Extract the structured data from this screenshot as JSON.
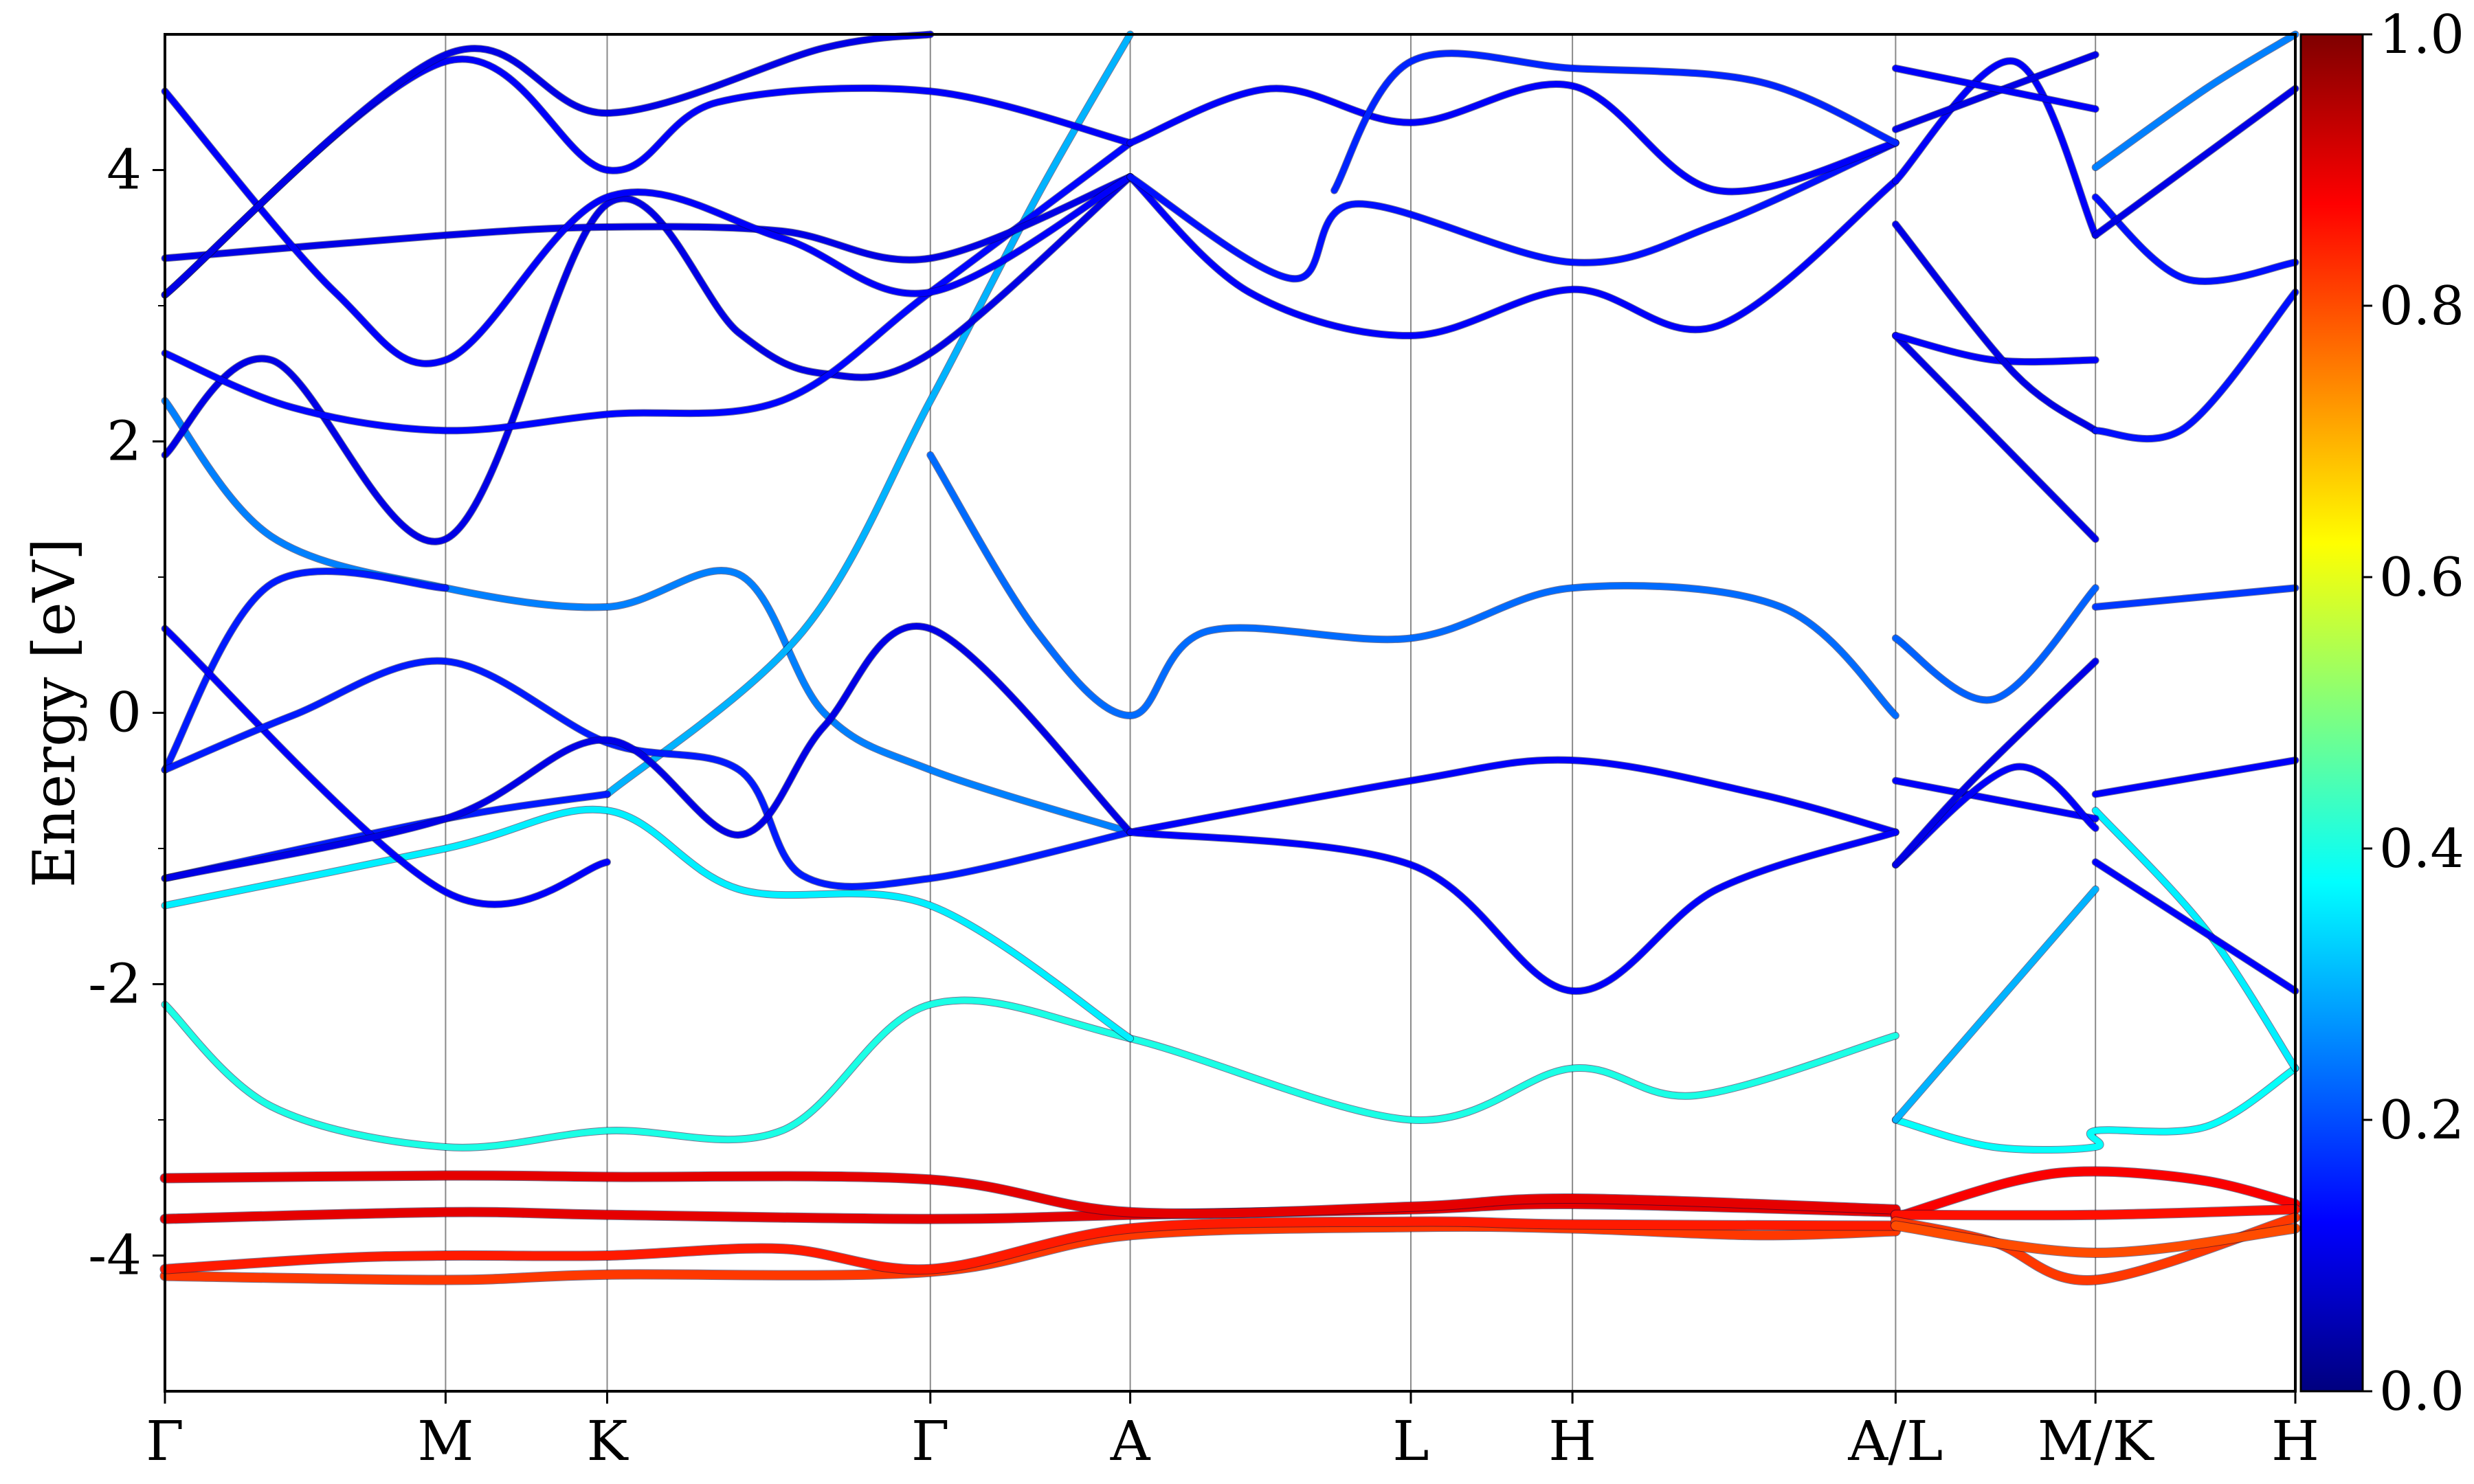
{
  "chart_data": {
    "type": "line",
    "title": "",
    "xlabel": "",
    "ylabel": "Energy [eV]",
    "ylim": [
      -5,
      5
    ],
    "grid": false,
    "legend": "none",
    "x_ticks": [
      {
        "label": "Γ",
        "k": 0.0
      },
      {
        "label": "M",
        "k": 1.32
      },
      {
        "label": "K",
        "k": 2.08
      },
      {
        "label": "Γ",
        "k": 3.6
      },
      {
        "label": "A",
        "k": 4.54
      },
      {
        "label": "L",
        "k": 5.86
      },
      {
        "label": "H",
        "k": 6.62
      },
      {
        "label": "A/L",
        "k": 8.14
      },
      {
        "label": "M/K",
        "k": 9.08
      },
      {
        "label": "H",
        "k": 10.02
      }
    ],
    "y_ticks": [
      {
        "label": "4",
        "value": 4
      },
      {
        "label": "2",
        "value": 2
      },
      {
        "label": "0",
        "value": 0
      },
      {
        "label": "-2",
        "value": -2
      },
      {
        "label": "-4",
        "value": -4
      }
    ],
    "y_minor_ticks": [
      3,
      1,
      -1,
      -3
    ],
    "colorbar": {
      "range": [
        0,
        1
      ],
      "colormap": "jet",
      "tick_labels": [
        "0.0",
        "0.2",
        "0.4",
        "0.6",
        "0.8",
        "1.0"
      ]
    },
    "bands": [
      {
        "weight": 0.82,
        "points": [
          [
            0,
            -4.15
          ],
          [
            1.32,
            -4.18
          ],
          [
            2.08,
            -4.14
          ],
          [
            3.6,
            -4.12
          ],
          [
            4.54,
            -3.85
          ],
          [
            5.86,
            -3.79
          ],
          [
            6.62,
            -3.8
          ],
          [
            7.5,
            -3.85
          ],
          [
            8.14,
            -3.82
          ]
        ]
      },
      {
        "weight": 0.85,
        "points": [
          [
            0,
            -4.1
          ],
          [
            0.8,
            -4.02
          ],
          [
            1.32,
            -4.0
          ],
          [
            2.08,
            -4.0
          ],
          [
            2.9,
            -3.95
          ],
          [
            3.6,
            -4.1
          ],
          [
            4.54,
            -3.8
          ],
          [
            5.86,
            -3.75
          ],
          [
            6.62,
            -3.77
          ],
          [
            8.14,
            -3.78
          ]
        ]
      },
      {
        "weight": 0.9,
        "points": [
          [
            0,
            -3.73
          ],
          [
            1.32,
            -3.68
          ],
          [
            2.08,
            -3.7
          ],
          [
            3.6,
            -3.73
          ],
          [
            4.54,
            -3.7
          ],
          [
            5.86,
            -3.66
          ],
          [
            6.62,
            -3.62
          ],
          [
            8.14,
            -3.68
          ]
        ]
      },
      {
        "weight": 0.9,
        "points": [
          [
            0,
            -3.43
          ],
          [
            1.32,
            -3.41
          ],
          [
            2.08,
            -3.42
          ],
          [
            3.6,
            -3.44
          ],
          [
            4.54,
            -3.68
          ],
          [
            5.86,
            -3.64
          ],
          [
            6.62,
            -3.58
          ],
          [
            8.14,
            -3.66
          ]
        ]
      },
      {
        "weight": 0.88,
        "points": [
          [
            8.14,
            -3.72
          ],
          [
            8.7,
            -3.45
          ],
          [
            9.08,
            -3.38
          ],
          [
            9.6,
            -3.45
          ],
          [
            10.02,
            -3.62
          ]
        ]
      },
      {
        "weight": 0.86,
        "points": [
          [
            8.14,
            -3.7
          ],
          [
            9.08,
            -3.7
          ],
          [
            10.02,
            -3.66
          ]
        ]
      },
      {
        "weight": 0.82,
        "points": [
          [
            8.14,
            -3.75
          ],
          [
            8.6,
            -3.9
          ],
          [
            9.08,
            -4.18
          ],
          [
            10.02,
            -3.72
          ]
        ]
      },
      {
        "weight": 0.8,
        "points": [
          [
            8.14,
            -3.78
          ],
          [
            9.08,
            -3.98
          ],
          [
            10.02,
            -3.8
          ]
        ]
      },
      {
        "weight": 0.4,
        "points": [
          [
            0,
            -2.15
          ],
          [
            0.5,
            -2.9
          ],
          [
            1.32,
            -3.2
          ],
          [
            2.08,
            -3.08
          ],
          [
            2.9,
            -3.08
          ],
          [
            3.6,
            -2.15
          ],
          [
            4.54,
            -2.4
          ],
          [
            5.86,
            -3.0
          ],
          [
            6.62,
            -2.62
          ],
          [
            7.2,
            -2.82
          ],
          [
            8.14,
            -2.38
          ]
        ]
      },
      {
        "weight": 0.38,
        "points": [
          [
            8.14,
            -3.0
          ],
          [
            8.6,
            -3.2
          ],
          [
            9.08,
            -3.2
          ],
          [
            9.08,
            -3.08
          ],
          [
            9.6,
            -3.05
          ],
          [
            10.02,
            -2.62
          ]
        ]
      },
      {
        "weight": 0.36,
        "points": [
          [
            0,
            -1.42
          ],
          [
            1.32,
            -1.0
          ],
          [
            2.08,
            -0.72
          ],
          [
            2.7,
            -1.3
          ],
          [
            3.6,
            -1.42
          ],
          [
            4.54,
            -2.4
          ]
        ]
      },
      {
        "weight": 0.3,
        "points": [
          [
            8.14,
            -3.0
          ],
          [
            9.08,
            -1.3
          ]
        ]
      },
      {
        "weight": 0.36,
        "points": [
          [
            9.08,
            -0.72
          ],
          [
            9.6,
            -1.6
          ],
          [
            10.02,
            -2.62
          ]
        ]
      },
      {
        "weight": 0.25,
        "points": [
          [
            0,
            2.3
          ],
          [
            0.5,
            1.3
          ],
          [
            1.32,
            0.92
          ],
          [
            2.08,
            0.78
          ],
          [
            2.7,
            1.02
          ],
          [
            3.1,
            0.0
          ],
          [
            3.6,
            -0.42
          ],
          [
            4.54,
            -0.88
          ]
        ]
      },
      {
        "weight": 0.3,
        "points": [
          [
            2.08,
            -0.6
          ],
          [
            3.0,
            0.6
          ],
          [
            3.6,
            2.3
          ],
          [
            4.1,
            3.8
          ],
          [
            4.54,
            5.0
          ]
        ]
      },
      {
        "weight": 0.23,
        "points": [
          [
            3.6,
            1.9
          ],
          [
            4.1,
            0.6
          ],
          [
            4.54,
            -0.02
          ],
          [
            4.9,
            0.6
          ],
          [
            5.86,
            0.55
          ],
          [
            6.62,
            0.92
          ],
          [
            7.6,
            0.78
          ],
          [
            8.14,
            -0.02
          ]
        ]
      },
      {
        "weight": 0.22,
        "points": [
          [
            8.14,
            0.55
          ],
          [
            8.6,
            0.1
          ],
          [
            9.08,
            0.92
          ]
        ]
      },
      {
        "weight": 0.18,
        "points": [
          [
            9.08,
            0.78
          ],
          [
            10.02,
            0.92
          ]
        ]
      },
      {
        "weight": 0.15,
        "points": [
          [
            0,
            -0.42
          ],
          [
            0.5,
            0.95
          ],
          [
            1.32,
            0.92
          ]
        ]
      },
      {
        "weight": 0.15,
        "points": [
          [
            0,
            -1.22
          ],
          [
            1.32,
            -0.78
          ],
          [
            2.08,
            -0.6
          ]
        ]
      },
      {
        "weight": 0.12,
        "points": [
          [
            0,
            0.62
          ],
          [
            1.32,
            -1.32
          ],
          [
            2.08,
            -1.1
          ]
        ]
      },
      {
        "weight": 0.15,
        "points": [
          [
            0,
            -0.42
          ],
          [
            0.6,
            -0.02
          ],
          [
            1.32,
            0.38
          ],
          [
            2.08,
            -0.22
          ],
          [
            2.7,
            -0.42
          ],
          [
            3.0,
            -1.2
          ],
          [
            3.6,
            -1.22
          ],
          [
            4.54,
            -0.88
          ]
        ]
      },
      {
        "weight": 0.1,
        "points": [
          [
            0,
            -1.22
          ],
          [
            1.32,
            -0.78
          ],
          [
            2.08,
            -0.2
          ],
          [
            2.7,
            -0.9
          ],
          [
            3.1,
            -0.1
          ],
          [
            3.6,
            0.62
          ],
          [
            4.54,
            -0.88
          ]
        ]
      },
      {
        "weight": 0.12,
        "points": [
          [
            4.54,
            -0.88
          ],
          [
            5.86,
            -0.5
          ],
          [
            6.62,
            -0.35
          ],
          [
            7.5,
            -0.6
          ],
          [
            8.14,
            -0.88
          ]
        ]
      },
      {
        "weight": 0.12,
        "points": [
          [
            4.54,
            -0.88
          ],
          [
            5.86,
            -1.12
          ],
          [
            6.62,
            -2.05
          ],
          [
            7.3,
            -1.3
          ],
          [
            8.14,
            -0.88
          ]
        ]
      },
      {
        "weight": 0.12,
        "points": [
          [
            8.14,
            -0.5
          ],
          [
            9.08,
            -0.78
          ]
        ]
      },
      {
        "weight": 0.12,
        "points": [
          [
            8.14,
            -1.12
          ],
          [
            8.7,
            -0.4
          ],
          [
            9.08,
            -0.85
          ]
        ]
      },
      {
        "weight": 0.12,
        "points": [
          [
            9.08,
            -0.6
          ],
          [
            10.02,
            -0.35
          ]
        ]
      },
      {
        "weight": 0.12,
        "points": [
          [
            9.08,
            -1.1
          ],
          [
            10.02,
            -2.05
          ]
        ]
      },
      {
        "weight": 0.1,
        "points": [
          [
            9.08,
            0.38
          ],
          [
            8.5,
            -0.5
          ],
          [
            8.14,
            -1.12
          ]
        ]
      },
      {
        "weight": 0.1,
        "points": [
          [
            0,
            1.9
          ],
          [
            0.5,
            2.6
          ],
          [
            1.32,
            1.28
          ],
          [
            2.08,
            3.75
          ],
          [
            2.7,
            2.8
          ],
          [
            3.1,
            2.5
          ],
          [
            3.6,
            2.65
          ],
          [
            4.54,
            3.95
          ]
        ]
      },
      {
        "weight": 0.13,
        "points": [
          [
            0,
            2.65
          ],
          [
            0.6,
            2.25
          ],
          [
            1.32,
            2.08
          ],
          [
            2.08,
            2.2
          ],
          [
            2.9,
            2.3
          ],
          [
            3.6,
            3.1
          ],
          [
            4.54,
            4.2
          ]
        ]
      },
      {
        "weight": 0.1,
        "points": [
          [
            0,
            3.35
          ],
          [
            1.32,
            3.52
          ],
          [
            2.08,
            3.58
          ],
          [
            2.9,
            3.55
          ],
          [
            3.6,
            3.35
          ],
          [
            4.54,
            3.95
          ]
        ]
      },
      {
        "weight": 0.12,
        "points": [
          [
            0,
            4.58
          ],
          [
            0.8,
            3.1
          ],
          [
            1.32,
            2.6
          ],
          [
            2.08,
            3.8
          ],
          [
            2.9,
            3.5
          ],
          [
            3.6,
            3.1
          ],
          [
            4.54,
            3.95
          ]
        ]
      },
      {
        "weight": 0.12,
        "points": [
          [
            0,
            3.08
          ],
          [
            1.32,
            4.8
          ],
          [
            2.08,
            4.0
          ],
          [
            2.6,
            4.5
          ],
          [
            3.6,
            4.58
          ],
          [
            4.54,
            4.2
          ]
        ]
      },
      {
        "weight": 0.1,
        "points": [
          [
            0,
            3.08
          ],
          [
            1.32,
            4.85
          ],
          [
            2.08,
            4.42
          ],
          [
            3.1,
            4.9
          ],
          [
            3.6,
            5.0
          ]
        ]
      },
      {
        "weight": 0.12,
        "points": [
          [
            4.54,
            3.95
          ],
          [
            5.1,
            3.1
          ],
          [
            5.86,
            2.78
          ],
          [
            6.62,
            3.12
          ],
          [
            7.3,
            2.85
          ],
          [
            8.14,
            3.92
          ]
        ]
      },
      {
        "weight": 0.14,
        "points": [
          [
            4.54,
            3.95
          ],
          [
            5.3,
            3.2
          ],
          [
            5.6,
            3.75
          ],
          [
            6.62,
            3.32
          ],
          [
            7.3,
            3.6
          ],
          [
            8.14,
            4.2
          ]
        ]
      },
      {
        "weight": 0.12,
        "points": [
          [
            4.54,
            4.2
          ],
          [
            5.2,
            4.6
          ],
          [
            5.86,
            4.35
          ],
          [
            6.62,
            4.62
          ],
          [
            7.3,
            3.85
          ],
          [
            8.14,
            4.2
          ]
        ]
      },
      {
        "weight": 0.16,
        "points": [
          [
            5.5,
            3.85
          ],
          [
            5.86,
            4.8
          ],
          [
            6.62,
            4.75
          ],
          [
            7.5,
            4.65
          ],
          [
            8.14,
            4.2
          ]
        ]
      },
      {
        "weight": 0.1,
        "points": [
          [
            8.14,
            2.78
          ],
          [
            9.08,
            1.28
          ]
        ]
      },
      {
        "weight": 0.12,
        "points": [
          [
            8.14,
            2.78
          ],
          [
            8.6,
            2.6
          ],
          [
            9.08,
            2.6
          ]
        ]
      },
      {
        "weight": 0.1,
        "points": [
          [
            8.14,
            3.6
          ],
          [
            8.7,
            2.5
          ],
          [
            9.08,
            2.08
          ]
        ]
      },
      {
        "weight": 0.12,
        "points": [
          [
            8.14,
            3.92
          ],
          [
            8.7,
            4.8
          ],
          [
            9.08,
            3.52
          ]
        ]
      },
      {
        "weight": 0.1,
        "points": [
          [
            8.14,
            4.3
          ],
          [
            9.08,
            4.85
          ]
        ]
      },
      {
        "weight": 0.12,
        "points": [
          [
            8.14,
            4.75
          ],
          [
            9.08,
            4.45
          ]
        ]
      },
      {
        "weight": 0.14,
        "points": [
          [
            9.08,
            2.08
          ],
          [
            9.5,
            2.1
          ],
          [
            10.02,
            3.1
          ]
        ]
      },
      {
        "weight": 0.14,
        "points": [
          [
            9.08,
            3.8
          ],
          [
            9.5,
            3.2
          ],
          [
            10.02,
            3.32
          ]
        ]
      },
      {
        "weight": 0.1,
        "points": [
          [
            9.08,
            3.52
          ],
          [
            10.02,
            4.6
          ]
        ]
      },
      {
        "weight": 0.25,
        "points": [
          [
            9.08,
            4.02
          ],
          [
            9.6,
            4.6
          ],
          [
            10.02,
            5.0
          ]
        ]
      }
    ]
  }
}
